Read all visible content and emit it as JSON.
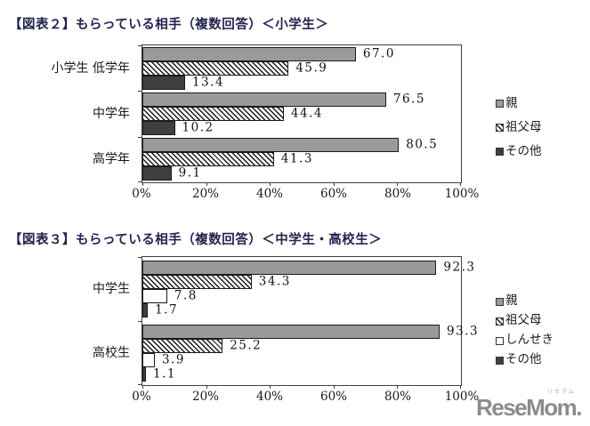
{
  "page": {
    "background": "#ffffff"
  },
  "colors": {
    "parent_bar": "#9a9a9a",
    "other_bar": "#3f3f3f",
    "white_bar": "#ffffff",
    "bar_border": "#1a1a1a",
    "axis": "#404040",
    "title_text": "#23234f",
    "logo_gray": "#8c8c8c"
  },
  "chart_data": [
    {
      "type": "bar",
      "orientation": "horizontal",
      "title": "【図表２】もらっている相手（複数回答）＜小学生＞",
      "categories": [
        "小学生 低学年",
        "中学年",
        "高学年"
      ],
      "series": [
        {
          "name": "親",
          "pattern": "solid",
          "color": "#9a9a9a",
          "values": [
            67.0,
            76.5,
            80.5
          ]
        },
        {
          "name": "祖父母",
          "pattern": "diagonal-hatch",
          "color": "#ffffff",
          "values": [
            45.9,
            44.4,
            41.3
          ]
        },
        {
          "name": "その他",
          "pattern": "solid",
          "color": "#3f3f3f",
          "values": [
            13.4,
            10.2,
            9.1
          ]
        }
      ],
      "xlim": [
        0,
        100
      ],
      "x_ticks": [
        "0%",
        "20%",
        "40%",
        "60%",
        "80%",
        "100%"
      ],
      "value_labels": true,
      "legend_position": "right",
      "grid": false
    },
    {
      "type": "bar",
      "orientation": "horizontal",
      "title": "【図表３】もらっている相手（複数回答）＜中学生・高校生＞",
      "categories": [
        "中学生",
        "高校生"
      ],
      "series": [
        {
          "name": "親",
          "pattern": "solid",
          "color": "#9a9a9a",
          "values": [
            92.3,
            93.3
          ]
        },
        {
          "name": "祖父母",
          "pattern": "diagonal-hatch",
          "color": "#ffffff",
          "values": [
            34.3,
            25.2
          ]
        },
        {
          "name": "しんせき",
          "pattern": "solid",
          "color": "#ffffff",
          "values": [
            7.8,
            3.9
          ]
        },
        {
          "name": "その他",
          "pattern": "solid",
          "color": "#3f3f3f",
          "values": [
            1.7,
            1.1
          ]
        }
      ],
      "xlim": [
        0,
        100
      ],
      "x_ticks": [
        "0%",
        "20%",
        "40%",
        "60%",
        "80%",
        "100%"
      ],
      "value_labels": true,
      "legend_position": "right",
      "grid": false
    }
  ],
  "logo": {
    "text": "ReseMom.",
    "ruby": "リセマム"
  }
}
